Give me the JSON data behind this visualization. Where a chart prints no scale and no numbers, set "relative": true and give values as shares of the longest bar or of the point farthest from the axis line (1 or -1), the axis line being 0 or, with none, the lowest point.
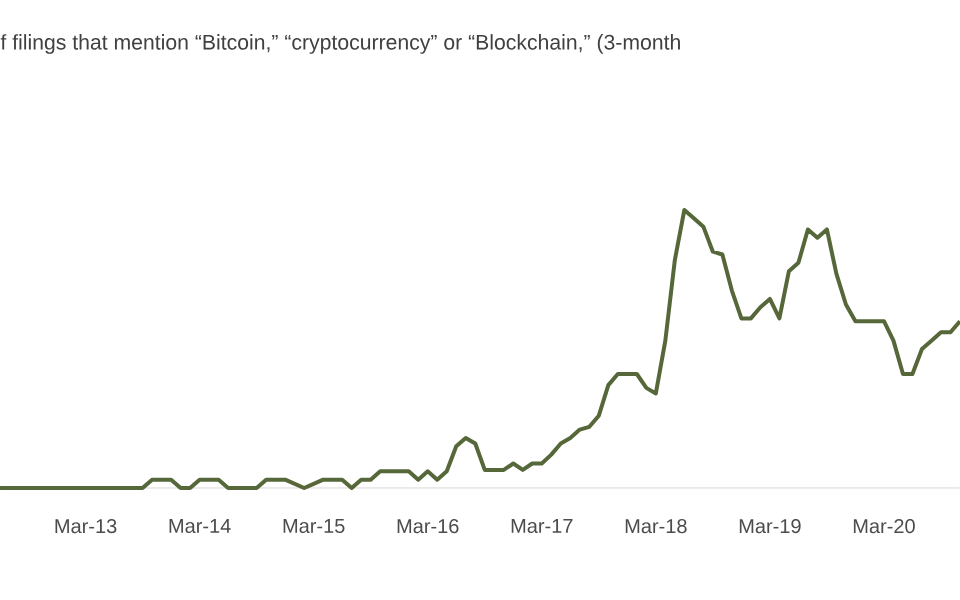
{
  "chart_data": {
    "type": "line",
    "title": "f filings that mention “Bitcoin,” “cryptocurrency” or “Blockchain,” (3-month",
    "relative": true,
    "color": "#56683a",
    "xlim": [
      "2012-06",
      "2020-11"
    ],
    "xticks": [
      {
        "value": "2013-03",
        "label": "Mar-13"
      },
      {
        "value": "2014-03",
        "label": "Mar-14"
      },
      {
        "value": "2015-03",
        "label": "Mar-15"
      },
      {
        "value": "2016-03",
        "label": "Mar-16"
      },
      {
        "value": "2017-03",
        "label": "Mar-17"
      },
      {
        "value": "2018-03",
        "label": "Mar-18"
      },
      {
        "value": "2019-03",
        "label": "Mar-19"
      },
      {
        "value": "2020-03",
        "label": "Mar-20"
      }
    ],
    "x": [
      "2012-06",
      "2012-07",
      "2012-08",
      "2012-09",
      "2012-10",
      "2012-11",
      "2012-12",
      "2013-01",
      "2013-02",
      "2013-03",
      "2013-04",
      "2013-05",
      "2013-06",
      "2013-07",
      "2013-08",
      "2013-09",
      "2013-10",
      "2013-11",
      "2013-12",
      "2014-01",
      "2014-02",
      "2014-03",
      "2014-04",
      "2014-05",
      "2014-06",
      "2014-07",
      "2014-08",
      "2014-09",
      "2014-10",
      "2014-11",
      "2014-12",
      "2015-01",
      "2015-02",
      "2015-03",
      "2015-04",
      "2015-05",
      "2015-06",
      "2015-07",
      "2015-08",
      "2015-09",
      "2015-10",
      "2015-11",
      "2015-12",
      "2016-01",
      "2016-02",
      "2016-03",
      "2016-04",
      "2016-05",
      "2016-06",
      "2016-07",
      "2016-08",
      "2016-09",
      "2016-10",
      "2016-11",
      "2016-12",
      "2017-01",
      "2017-02",
      "2017-03",
      "2017-04",
      "2017-05",
      "2017-06",
      "2017-07",
      "2017-08",
      "2017-09",
      "2017-10",
      "2017-11",
      "2017-12",
      "2018-01",
      "2018-02",
      "2018-03",
      "2018-04",
      "2018-05",
      "2018-06",
      "2018-07",
      "2018-08",
      "2018-09",
      "2018-10",
      "2018-11",
      "2018-12",
      "2019-01",
      "2019-02",
      "2019-03",
      "2019-04",
      "2019-05",
      "2019-06",
      "2019-07",
      "2019-08",
      "2019-09",
      "2019-10",
      "2019-11",
      "2019-12",
      "2020-01",
      "2020-02",
      "2020-03",
      "2020-04",
      "2020-05",
      "2020-06",
      "2020-07",
      "2020-08",
      "2020-09",
      "2020-10",
      "2020-11"
    ],
    "values": [
      0,
      0,
      0,
      0,
      0,
      0,
      0,
      0,
      0,
      0,
      0,
      0,
      0,
      0,
      0,
      0,
      0.03,
      0.03,
      0.03,
      0,
      0,
      0.03,
      0.03,
      0.03,
      0,
      0,
      0,
      0,
      0.03,
      0.03,
      0.03,
      0.015,
      0,
      0.015,
      0.03,
      0.03,
      0.03,
      0,
      0.03,
      0.03,
      0.06,
      0.06,
      0.06,
      0.06,
      0.03,
      0.06,
      0.03,
      0.06,
      0.15,
      0.18,
      0.16,
      0.065,
      0.065,
      0.065,
      0.088,
      0.065,
      0.088,
      0.088,
      0.12,
      0.16,
      0.18,
      0.21,
      0.22,
      0.26,
      0.37,
      0.41,
      0.41,
      0.41,
      0.36,
      0.34,
      0.53,
      0.82,
      1.0,
      0.97,
      0.94,
      0.85,
      0.84,
      0.71,
      0.61,
      0.61,
      0.65,
      0.68,
      0.61,
      0.78,
      0.81,
      0.93,
      0.9,
      0.93,
      0.77,
      0.66,
      0.6,
      0.6,
      0.6,
      0.6,
      0.53,
      0.41,
      0.41,
      0.5,
      0.53,
      0.56,
      0.56,
      0.6
    ]
  }
}
